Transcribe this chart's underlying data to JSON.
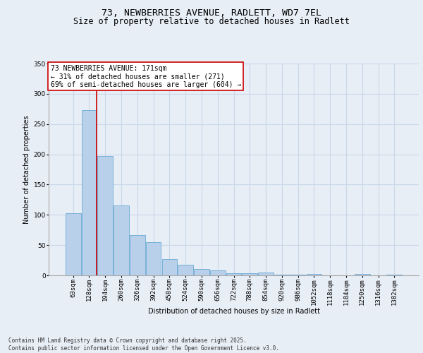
{
  "title_line1": "73, NEWBERRIES AVENUE, RADLETT, WD7 7EL",
  "title_line2": "Size of property relative to detached houses in Radlett",
  "xlabel": "Distribution of detached houses by size in Radlett",
  "ylabel": "Number of detached properties",
  "categories": [
    "63sqm",
    "128sqm",
    "194sqm",
    "260sqm",
    "326sqm",
    "392sqm",
    "458sqm",
    "524sqm",
    "590sqm",
    "656sqm",
    "722sqm",
    "788sqm",
    "854sqm",
    "920sqm",
    "986sqm",
    "1052sqm",
    "1118sqm",
    "1184sqm",
    "1250sqm",
    "1316sqm",
    "1382sqm"
  ],
  "values": [
    103,
    273,
    197,
    115,
    66,
    55,
    27,
    18,
    11,
    8,
    4,
    3,
    5,
    1,
    1,
    2,
    0,
    0,
    2,
    0,
    1
  ],
  "bar_color": "#b8d0ea",
  "bar_edge_color": "#6aaad4",
  "grid_color": "#c8d8e8",
  "bg_color": "#e8eef6",
  "annotation_text_line1": "73 NEWBERRIES AVENUE: 171sqm",
  "annotation_text_line2": "← 31% of detached houses are smaller (271)",
  "annotation_text_line3": "69% of semi-detached houses are larger (604) →",
  "annotation_box_color": "#ffffff",
  "annotation_box_edge": "#cc0000",
  "red_line_color": "#cc0000",
  "red_line_x": 1.475,
  "ylim": [
    0,
    350
  ],
  "yticks": [
    0,
    50,
    100,
    150,
    200,
    250,
    300,
    350
  ],
  "footer_line1": "Contains HM Land Registry data © Crown copyright and database right 2025.",
  "footer_line2": "Contains public sector information licensed under the Open Government Licence v3.0.",
  "title_fontsize": 9.5,
  "subtitle_fontsize": 8.5,
  "axis_label_fontsize": 7,
  "tick_fontsize": 6.5,
  "annotation_fontsize": 7,
  "footer_fontsize": 5.5
}
